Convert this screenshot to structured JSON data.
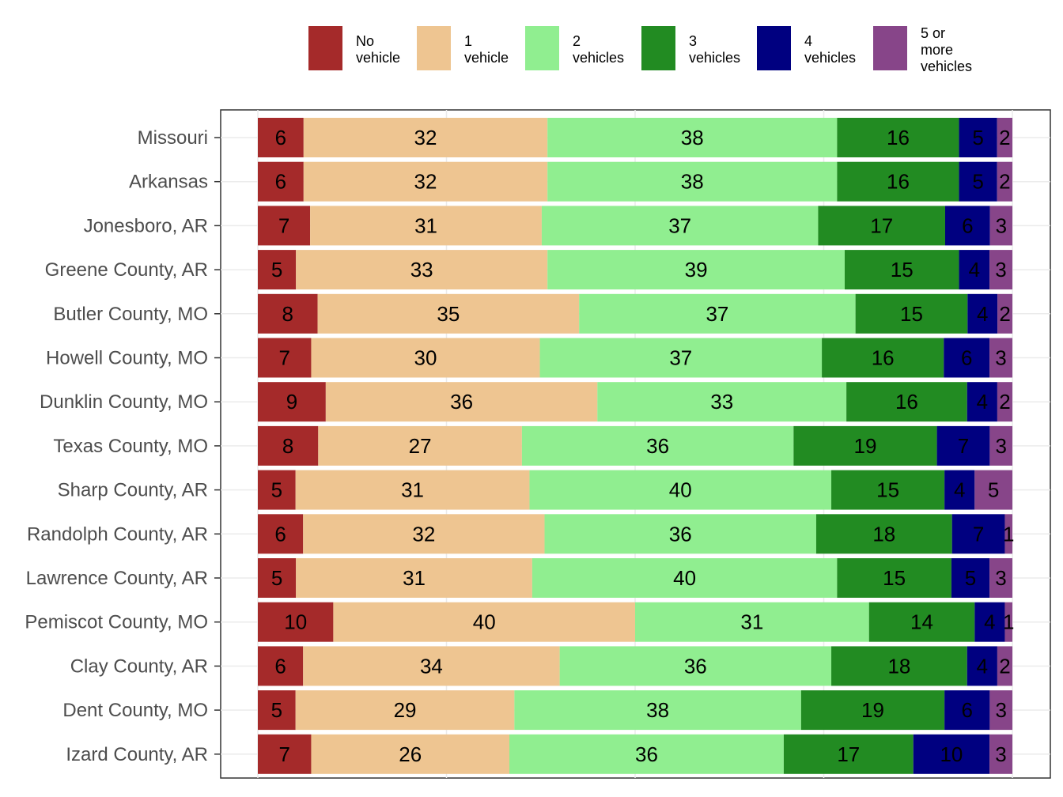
{
  "chart_data": {
    "type": "bar",
    "orientation": "horizontal",
    "stacked": true,
    "title": "",
    "xlabel": "",
    "ylabel": "",
    "xlim": [
      0,
      100
    ],
    "grid": true,
    "legend_position": "top",
    "categories": [
      "Missouri",
      "Arkansas",
      "Jonesboro, AR",
      "Greene County, AR",
      "Butler County, MO",
      "Howell County, MO",
      "Dunklin County, MO",
      "Texas County, MO",
      "Sharp County, AR",
      "Randolph County, AR",
      "Lawrence County, AR",
      "Pemiscot County, MO",
      "Clay County, AR",
      "Dent County, MO",
      "Izard County, AR"
    ],
    "series": [
      {
        "name": "No vehicle",
        "legend_lines": [
          "No",
          "vehicle"
        ],
        "color": "#A52A2A",
        "values": [
          6,
          6,
          7,
          5,
          8,
          7,
          9,
          8,
          5,
          6,
          5,
          10,
          6,
          5,
          7
        ]
      },
      {
        "name": "1 vehicle",
        "legend_lines": [
          "1",
          "vehicle"
        ],
        "color": "#EEC591",
        "values": [
          32,
          32,
          31,
          33,
          35,
          30,
          36,
          27,
          31,
          32,
          31,
          40,
          34,
          29,
          26
        ]
      },
      {
        "name": "2 vehicles",
        "legend_lines": [
          "2",
          "vehicles"
        ],
        "color": "#90EE90",
        "values": [
          38,
          38,
          37,
          39,
          37,
          37,
          33,
          36,
          40,
          36,
          40,
          31,
          36,
          38,
          36
        ]
      },
      {
        "name": "3 vehicles",
        "legend_lines": [
          "3",
          "vehicles"
        ],
        "color": "#228B22",
        "values": [
          16,
          16,
          17,
          15,
          15,
          16,
          16,
          19,
          15,
          18,
          15,
          14,
          18,
          19,
          17
        ]
      },
      {
        "name": "4 vehicles",
        "legend_lines": [
          "4",
          "vehicles"
        ],
        "color": "#000080",
        "values": [
          5,
          5,
          6,
          4,
          4,
          6,
          4,
          7,
          4,
          7,
          5,
          4,
          4,
          6,
          10
        ]
      },
      {
        "name": "5 or more vehicles",
        "legend_lines": [
          "5 or",
          "more",
          "vehicles"
        ],
        "color": "#874589",
        "values": [
          2,
          2,
          3,
          3,
          2,
          3,
          2,
          3,
          5,
          1,
          3,
          1,
          2,
          3,
          3
        ]
      }
    ]
  }
}
